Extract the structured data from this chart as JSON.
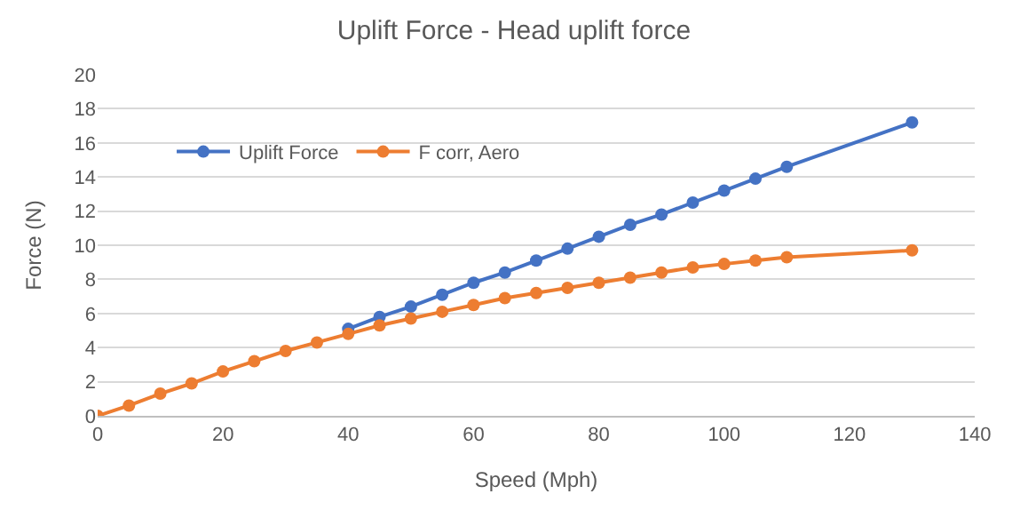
{
  "chart_data": {
    "type": "line",
    "title": "Uplift Force - Head uplift force",
    "xlabel": "Speed (Mph)",
    "ylabel": "Force (N)",
    "x": [
      0,
      5,
      10,
      15,
      20,
      25,
      30,
      35,
      40,
      45,
      50,
      55,
      60,
      65,
      70,
      75,
      80,
      85,
      90,
      95,
      100,
      105,
      110,
      130
    ],
    "series": [
      {
        "name": "Uplift Force",
        "color": "#4472c4",
        "values": [
          null,
          null,
          null,
          null,
          null,
          null,
          null,
          null,
          5.1,
          5.8,
          6.4,
          7.1,
          7.8,
          8.4,
          9.1,
          9.8,
          10.5,
          11.2,
          11.8,
          12.5,
          13.2,
          13.9,
          14.6,
          17.2
        ]
      },
      {
        "name": "F corr, Aero",
        "color": "#ed7d31",
        "values": [
          0,
          0.6,
          1.3,
          1.9,
          2.6,
          3.2,
          3.8,
          4.3,
          4.8,
          5.3,
          5.7,
          6.1,
          6.5,
          6.9,
          7.2,
          7.5,
          7.8,
          8.1,
          8.4,
          8.7,
          8.9,
          9.1,
          9.3,
          9.7
        ]
      }
    ],
    "xlim": [
      0,
      140
    ],
    "xticks": [
      0,
      20,
      40,
      60,
      80,
      100,
      120,
      140
    ],
    "ylim": [
      0,
      20
    ],
    "yticks": [
      0,
      2,
      4,
      6,
      8,
      10,
      12,
      14,
      16,
      18,
      20
    ],
    "grid": "y",
    "legend": "top left",
    "marker": "circle",
    "line_style": "solid"
  }
}
